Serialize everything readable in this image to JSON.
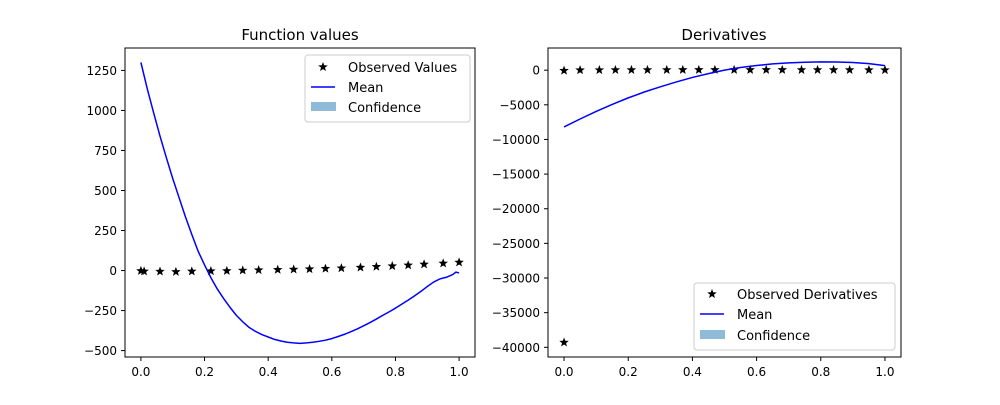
{
  "chart_data": [
    {
      "type": "line",
      "title": "Function values",
      "xlabel": "",
      "ylabel": "",
      "xlim": [
        -0.05,
        1.05
      ],
      "ylim": [
        -540,
        1390
      ],
      "xticks": [
        0.0,
        0.2,
        0.4,
        0.6,
        0.8,
        1.0
      ],
      "xtick_labels": [
        "0.0",
        "0.2",
        "0.4",
        "0.6",
        "0.8",
        "1.0"
      ],
      "yticks": [
        -500,
        -250,
        0,
        250,
        500,
        750,
        1000,
        1250
      ],
      "ytick_labels": [
        "−500",
        "−250",
        "0",
        "250",
        "500",
        "750",
        "1000",
        "1250"
      ],
      "legend": {
        "position": "top-right",
        "entries": [
          {
            "label": "Observed Values",
            "kind": "star"
          },
          {
            "label": "Mean",
            "kind": "line"
          },
          {
            "label": "Confidence",
            "kind": "patch"
          }
        ]
      },
      "series": [
        {
          "name": "Observed Values",
          "style": "star",
          "color": "#000000",
          "x": [
            0.0,
            0.01,
            0.06,
            0.11,
            0.16,
            0.22,
            0.27,
            0.32,
            0.37,
            0.43,
            0.48,
            0.53,
            0.58,
            0.63,
            0.69,
            0.74,
            0.79,
            0.84,
            0.89,
            0.95,
            1.0
          ],
          "y": [
            -2,
            -5,
            -6,
            -8,
            -5,
            -3,
            -2,
            1,
            3,
            5,
            7,
            9,
            12,
            15,
            19,
            24,
            28,
            33,
            39,
            45,
            51
          ]
        },
        {
          "name": "Mean",
          "style": "line",
          "color": "#0000ff",
          "x": [
            0.0,
            0.02,
            0.04,
            0.06,
            0.08,
            0.1,
            0.12,
            0.14,
            0.16,
            0.18,
            0.2,
            0.22,
            0.24,
            0.26,
            0.28,
            0.3,
            0.32,
            0.34,
            0.36,
            0.38,
            0.4,
            0.42,
            0.44,
            0.46,
            0.48,
            0.5,
            0.52,
            0.54,
            0.56,
            0.58,
            0.6,
            0.62,
            0.64,
            0.66,
            0.68,
            0.7,
            0.72,
            0.74,
            0.76,
            0.78,
            0.8,
            0.82,
            0.84,
            0.86,
            0.88,
            0.9,
            0.92,
            0.94,
            0.96,
            0.98,
            0.99,
            1.0
          ],
          "y": [
            1300,
            1135,
            985,
            840,
            705,
            575,
            455,
            335,
            225,
            120,
            35,
            -45,
            -115,
            -175,
            -230,
            -280,
            -320,
            -355,
            -380,
            -400,
            -415,
            -430,
            -440,
            -448,
            -452,
            -455,
            -452,
            -448,
            -442,
            -435,
            -425,
            -412,
            -398,
            -382,
            -365,
            -345,
            -325,
            -303,
            -280,
            -258,
            -235,
            -210,
            -185,
            -158,
            -130,
            -100,
            -72,
            -52,
            -42,
            -25,
            -10,
            -15
          ]
        }
      ]
    },
    {
      "type": "line",
      "title": "Derivatives",
      "xlabel": "",
      "ylabel": "",
      "xlim": [
        -0.05,
        1.05
      ],
      "ylim": [
        -41400,
        3200
      ],
      "xticks": [
        0.0,
        0.2,
        0.4,
        0.6,
        0.8,
        1.0
      ],
      "xtick_labels": [
        "0.0",
        "0.2",
        "0.4",
        "0.6",
        "0.8",
        "1.0"
      ],
      "yticks": [
        -40000,
        -35000,
        -30000,
        -25000,
        -20000,
        -15000,
        -10000,
        -5000,
        0
      ],
      "ytick_labels": [
        "−40000",
        "−35000",
        "−30000",
        "−25000",
        "−20000",
        "−15000",
        "−10000",
        "−5000",
        "0"
      ],
      "legend": {
        "position": "bottom-right",
        "entries": [
          {
            "label": "Observed Derivatives",
            "kind": "star"
          },
          {
            "label": "Mean",
            "kind": "line"
          },
          {
            "label": "Confidence",
            "kind": "patch"
          }
        ]
      },
      "series": [
        {
          "name": "Observed Derivatives",
          "style": "star",
          "color": "#000000",
          "x": [
            0.0,
            0.0,
            0.05,
            0.11,
            0.16,
            0.21,
            0.26,
            0.32,
            0.37,
            0.42,
            0.47,
            0.53,
            0.58,
            0.63,
            0.68,
            0.74,
            0.79,
            0.84,
            0.89,
            0.95,
            1.0
          ],
          "y": [
            -39300,
            -60,
            10,
            20,
            30,
            35,
            40,
            40,
            45,
            45,
            45,
            45,
            45,
            45,
            45,
            40,
            40,
            35,
            30,
            25,
            20
          ]
        },
        {
          "name": "Mean",
          "style": "line",
          "color": "#0000ff",
          "x": [
            0.0,
            0.05,
            0.1,
            0.15,
            0.2,
            0.25,
            0.3,
            0.35,
            0.4,
            0.45,
            0.5,
            0.55,
            0.6,
            0.65,
            0.7,
            0.75,
            0.8,
            0.85,
            0.9,
            0.95,
            1.0
          ],
          "y": [
            -8200,
            -7050,
            -5950,
            -4950,
            -4000,
            -3150,
            -2400,
            -1700,
            -1050,
            -500,
            0,
            380,
            680,
            900,
            1050,
            1150,
            1200,
            1180,
            1100,
            950,
            650
          ]
        }
      ]
    }
  ]
}
